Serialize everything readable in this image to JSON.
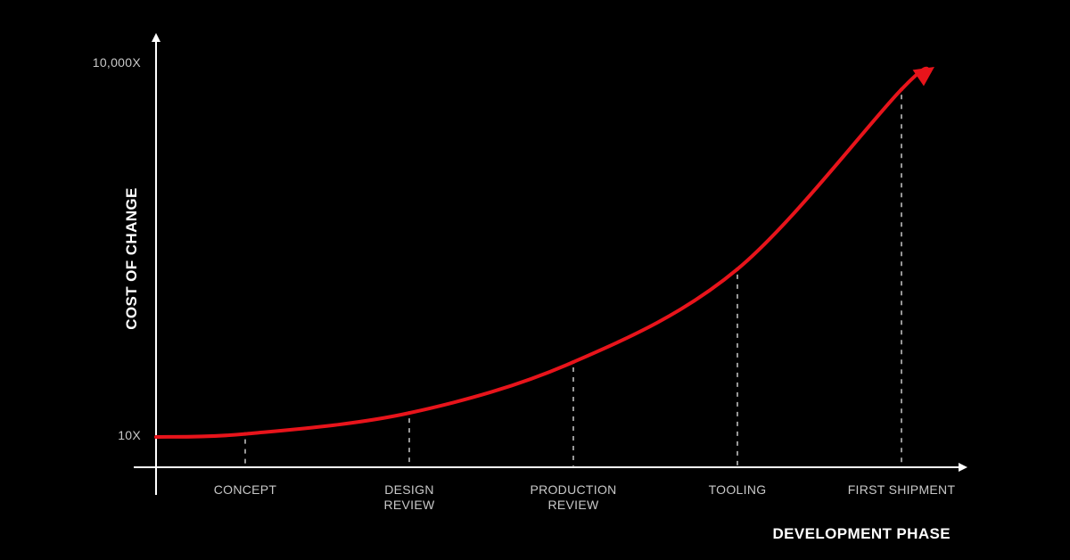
{
  "chart_data": {
    "type": "line",
    "title": "",
    "xlabel": "DEVELOPMENT PHASE",
    "ylabel": "COST OF CHANGE",
    "y_ticks": [
      "10,000X",
      "10X"
    ],
    "categories": [
      [
        "CONCEPT"
      ],
      [
        "DESIGN",
        "REVIEW"
      ],
      [
        "PRODUCTION",
        "REVIEW"
      ],
      [
        "TOOLING"
      ],
      [
        "FIRST SHIPMENT"
      ]
    ],
    "x": [
      0,
      1,
      2,
      3,
      4
    ],
    "values": [
      0.01,
      0.08,
      0.25,
      0.56,
      1.16
    ],
    "ylim": [
      0,
      1.25
    ],
    "grid": false,
    "drop_lines": true,
    "colors": {
      "background": "#000000",
      "axis": "#ffffff",
      "curve": "#e8141b",
      "drop_line": "#bdbdbd",
      "tick_text": "#c8c8c8"
    }
  }
}
